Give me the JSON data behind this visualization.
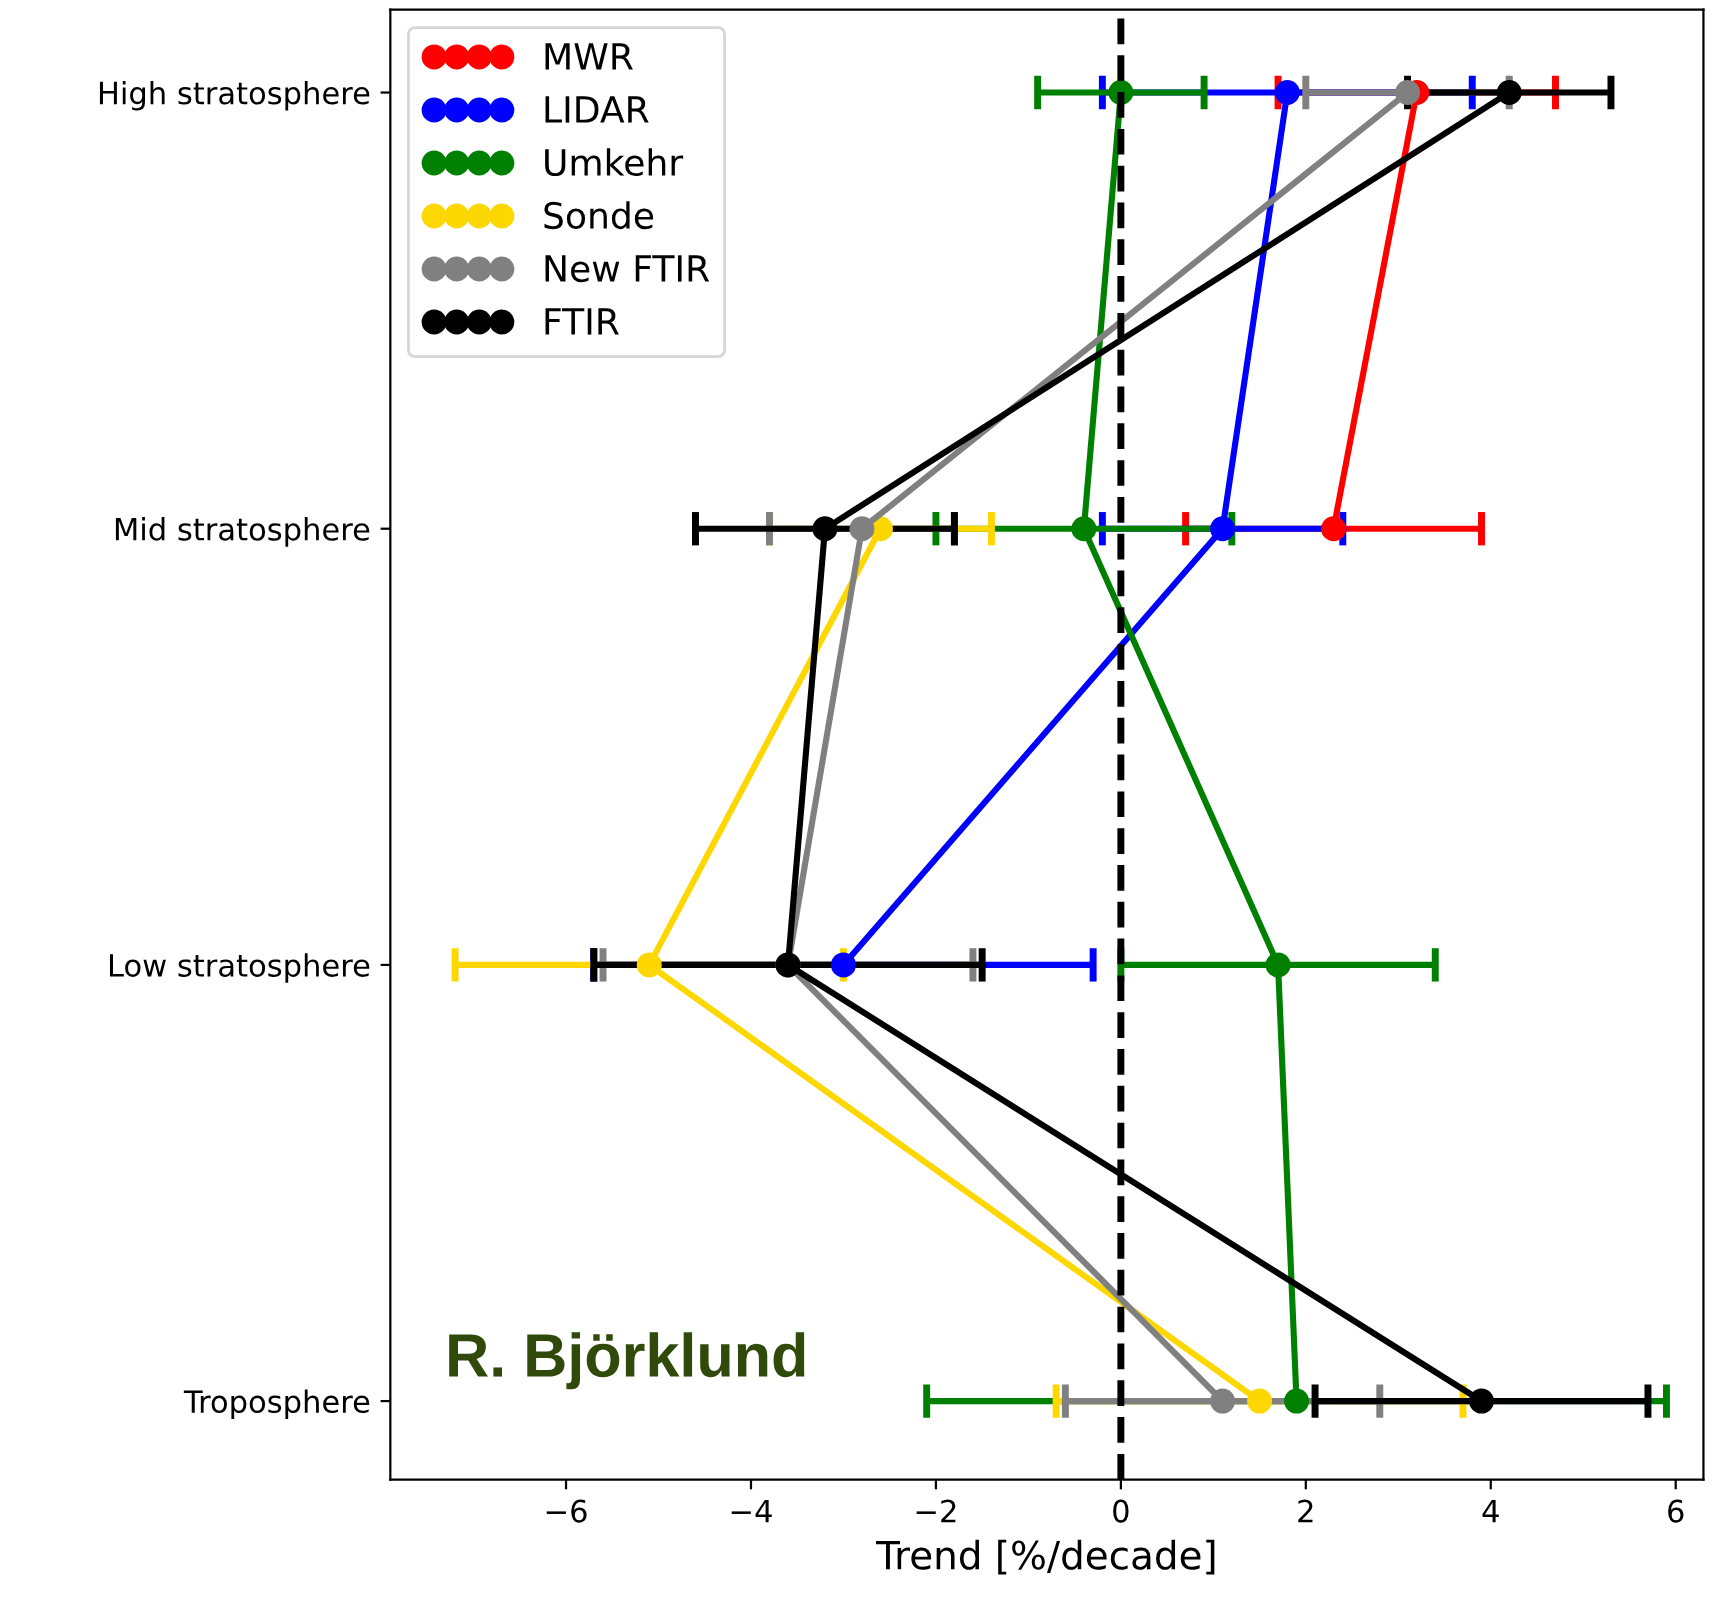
{
  "chart_data": {
    "type": "line",
    "orientation": "horizontal",
    "xlabel": "Trend [%/decade]",
    "categories": [
      "High stratosphere",
      "Mid stratosphere",
      "Low stratosphere",
      "Troposphere"
    ],
    "xlim": [
      -7.9,
      6.3
    ],
    "xticks": [
      {
        "value": -6,
        "label": "−6"
      },
      {
        "value": -4,
        "label": "−4"
      },
      {
        "value": -2,
        "label": "−2"
      },
      0,
      2,
      4,
      6
    ],
    "marker": "circle",
    "line_style": "solid",
    "legend": "top left",
    "grid": false,
    "ref_lines": [
      {
        "axis": "x",
        "value": 0,
        "color": "#000000",
        "line_style": "dashed"
      }
    ],
    "annotations": [
      "R. Björklund"
    ],
    "series": [
      {
        "name": "MWR",
        "color": "#ff0000",
        "values": [
          3.2,
          2.3,
          null,
          null
        ],
        "errors": [
          1.5,
          1.6,
          null,
          null
        ]
      },
      {
        "name": "LIDAR",
        "color": "#0000ff",
        "values": [
          1.8,
          1.1,
          -3.0,
          null
        ],
        "errors": [
          2.0,
          1.3,
          2.7,
          null
        ]
      },
      {
        "name": "Umkehr",
        "color": "#008000",
        "values": [
          0.0,
          -0.4,
          1.7,
          1.9
        ],
        "errors": [
          0.9,
          1.6,
          1.7,
          4.0
        ]
      },
      {
        "name": "Sonde",
        "color": "#ffd700",
        "values": [
          null,
          -2.6,
          -5.1,
          1.5
        ],
        "errors": [
          null,
          1.2,
          2.1,
          2.2
        ]
      },
      {
        "name": "New FTIR",
        "color": "#808080",
        "values": [
          3.1,
          -2.8,
          -3.6,
          1.1
        ],
        "errors": [
          1.1,
          1.0,
          2.0,
          1.7
        ]
      },
      {
        "name": "FTIR",
        "color": "#000000",
        "values": [
          4.2,
          -3.2,
          -3.6,
          3.9
        ],
        "errors": [
          1.1,
          1.4,
          2.1,
          1.8
        ]
      }
    ]
  }
}
